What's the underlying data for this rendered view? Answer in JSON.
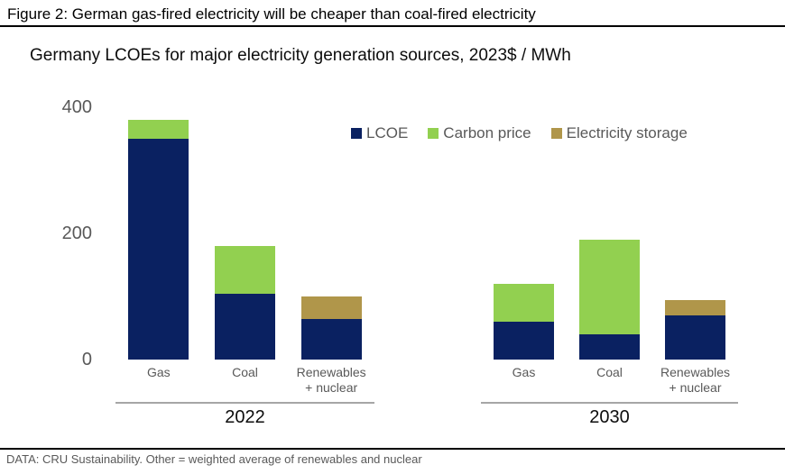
{
  "header": {
    "title": "Figure 2: German gas-fired electricity will be cheaper than coal-fired electricity"
  },
  "chart": {
    "subtitle": "Germany LCOEs for major electricity generation sources, 2023$ / MWh"
  },
  "footer": {
    "source": "DATA: CRU Sustainability. Other = weighted average of renewables and nuclear"
  },
  "colors": {
    "lcoe": "#0a2161",
    "carbon_price": "#92d050",
    "electricity_storage": "#b0964a",
    "axis_text": "#595959",
    "group_line": "#a6a6a6",
    "rule_line": "#000000"
  },
  "chart_data": {
    "type": "bar",
    "stacked": true,
    "title": "Germany LCOEs for major electricity generation sources, 2023$ / MWh",
    "unit": "2023$ / MWh",
    "ylim": [
      0,
      400
    ],
    "yticks": [
      0,
      200,
      400
    ],
    "grid": false,
    "legend_position": "top-right",
    "legend": [
      {
        "name": "LCOE",
        "color": "#0a2161"
      },
      {
        "name": "Carbon price",
        "color": "#92d050"
      },
      {
        "name": "Electricity storage",
        "color": "#b0964a"
      }
    ],
    "groups": [
      {
        "label": "2022",
        "categories": [
          "Gas",
          "Coal",
          "Renewables\n+ nuclear"
        ],
        "series": [
          {
            "name": "LCOE",
            "values": [
              350,
              105,
              65
            ]
          },
          {
            "name": "Carbon price",
            "values": [
              30,
              75,
              0
            ]
          },
          {
            "name": "Electricity storage",
            "values": [
              0,
              0,
              35
            ]
          }
        ],
        "totals": [
          380,
          180,
          100
        ]
      },
      {
        "label": "2030",
        "categories": [
          "Gas",
          "Coal",
          "Renewables\n+ nuclear"
        ],
        "series": [
          {
            "name": "LCOE",
            "values": [
              60,
              40,
              70
            ]
          },
          {
            "name": "Carbon price",
            "values": [
              60,
              150,
              0
            ]
          },
          {
            "name": "Electricity storage",
            "values": [
              0,
              0,
              25
            ]
          }
        ],
        "totals": [
          120,
          190,
          95
        ]
      }
    ]
  }
}
